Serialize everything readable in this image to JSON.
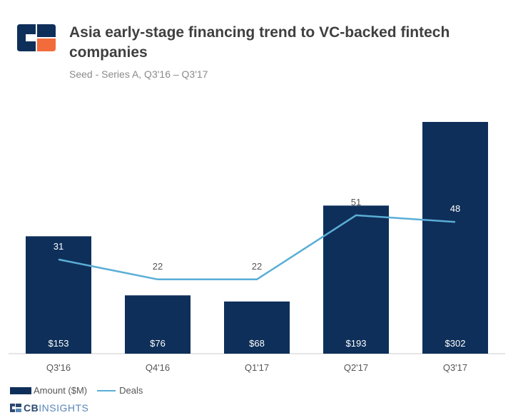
{
  "header": {
    "title": "Asia early-stage financing trend to VC-backed fintech companies",
    "subtitle": "Seed - Series A, Q3'16 – Q3'17"
  },
  "legend": {
    "bar_label": "Amount ($M)",
    "line_label": "Deals"
  },
  "brand": {
    "part1": "CB",
    "part2": "INSIGHTS"
  },
  "colors": {
    "bar": "#0e2f5a",
    "line": "#5aaed6",
    "text": "#555555",
    "logo_orange": "#f26b3a",
    "logo_navy": "#0e2f5a"
  },
  "icons": {
    "logo": "cb-insights-logo-icon"
  },
  "chart_data": {
    "type": "bar",
    "categories": [
      "Q3'16",
      "Q4'16",
      "Q1'17",
      "Q2'17",
      "Q3'17"
    ],
    "series": [
      {
        "name": "Amount ($M)",
        "type": "bar",
        "values": [
          153,
          76,
          68,
          193,
          302
        ],
        "labels": [
          "$153",
          "$76",
          "$68",
          "$193",
          "$302"
        ]
      },
      {
        "name": "Deals",
        "type": "line",
        "values": [
          31,
          22,
          22,
          51,
          48
        ],
        "labels": [
          "31",
          "22",
          "22",
          "51",
          "48"
        ]
      }
    ],
    "title": "Asia early-stage financing trend to VC-backed fintech companies",
    "subtitle": "Seed - Series A, Q3'16 – Q3'17",
    "legend_position": "bottom-left",
    "grid": false
  }
}
